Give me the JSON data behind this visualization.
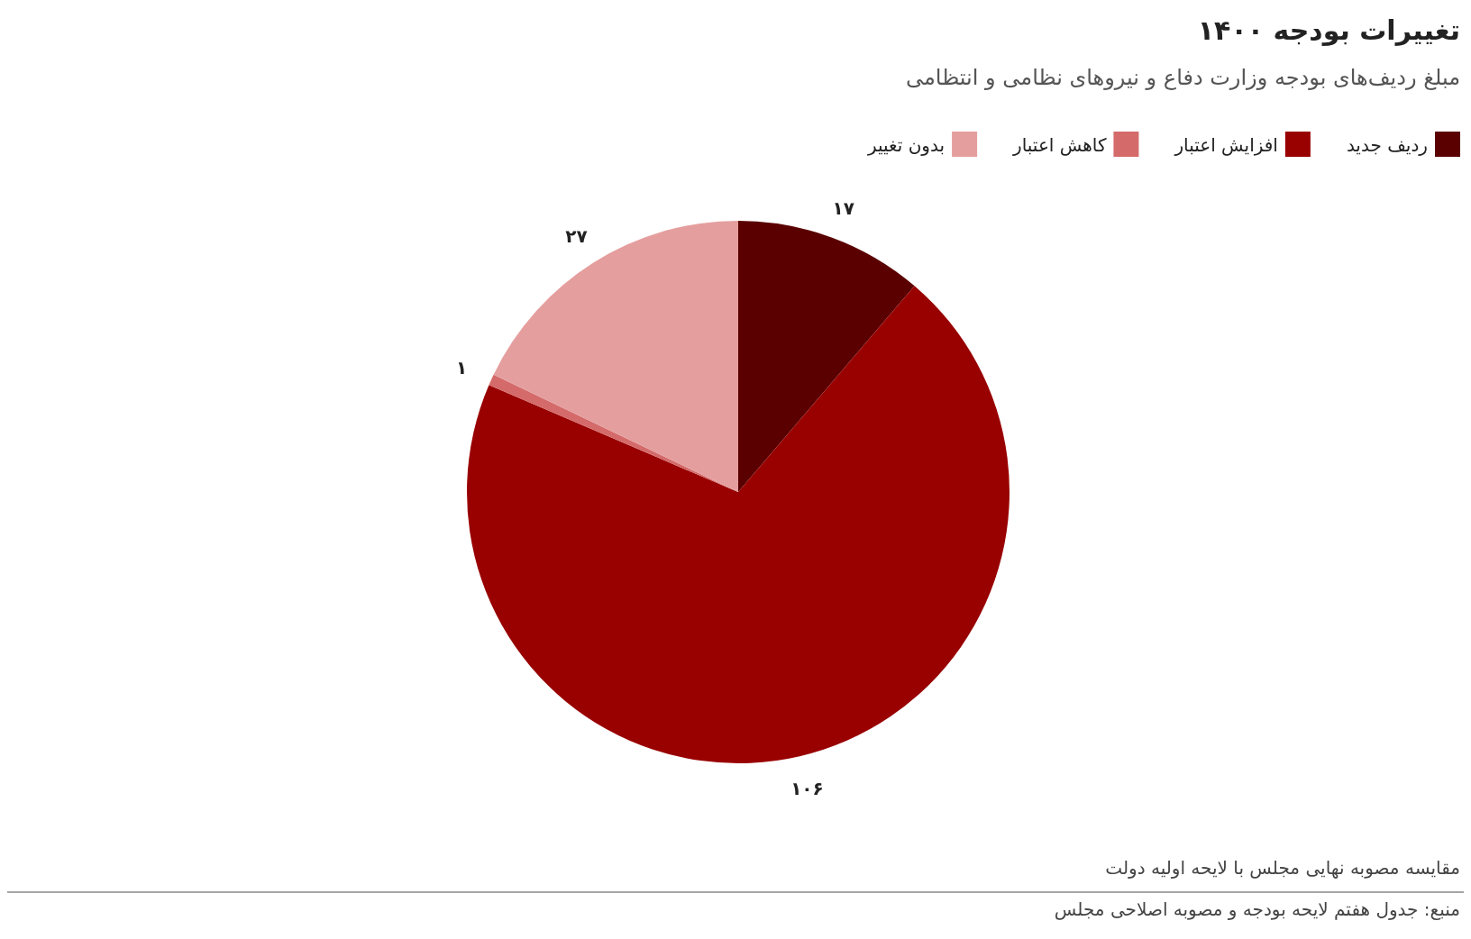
{
  "chart_data": {
    "type": "pie",
    "title": "تغییرات بودجه ۱۴۰۰",
    "subtitle": "مبلغ ردیف‌های بودجه وزارت دفاع و نیروهای نظامی و انتظامی",
    "categories": [
      "ردیف جدید",
      "افزایش اعتبار",
      "کاهش اعتبار",
      "بدون تغییر"
    ],
    "values": [
      17,
      106,
      1,
      27
    ],
    "value_labels": [
      "۱۷",
      "۱۰۶",
      "۱",
      "۲۷"
    ],
    "colors": [
      "#5a0000",
      "#990000",
      "#d46a6a",
      "#e59e9e"
    ],
    "legend": "top",
    "annotations": [
      "مقایسه مصوبه نهایی مجلس با لایحه اولیه دولت",
      "منبع: جدول هفتم لایحه بودجه و مصوبه اصلاحی مجلس"
    ]
  }
}
